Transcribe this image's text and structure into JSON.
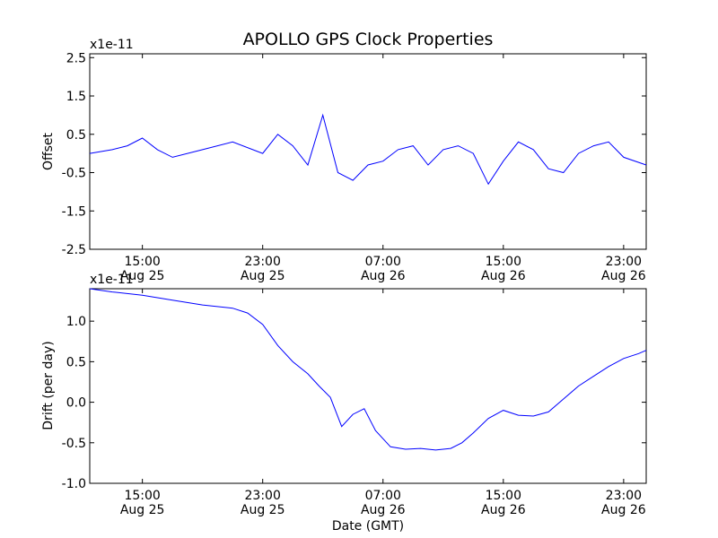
{
  "chart_data": [
    {
      "type": "line",
      "title": "APOLLO GPS Clock Properties",
      "ylabel": "Offset",
      "xlabel": "",
      "y_multiplier": "x1e-11",
      "ylim": [
        -2.5,
        2.6
      ],
      "yticks": [
        "2.5",
        "1.5",
        "0.5",
        "-0.5",
        "-1.5",
        "-2.5"
      ],
      "ytick_values": [
        2.5,
        1.5,
        0.5,
        -0.5,
        -1.5,
        -2.5
      ],
      "xlim": [
        "Aug 25 11:30",
        "Aug 27 00:30"
      ],
      "xticks": [
        {
          "time": "15:00",
          "date": "Aug 25"
        },
        {
          "time": "23:00",
          "date": "Aug 25"
        },
        {
          "time": "07:00",
          "date": "Aug 26"
        },
        {
          "time": "15:00",
          "date": "Aug 26"
        },
        {
          "time": "23:00",
          "date": "Aug 26"
        }
      ],
      "series_color": "#0000ff",
      "grid": false,
      "series": [
        {
          "x": [
            "Aug 25 11:30",
            "Aug 25 13:00",
            "Aug 25 14:00",
            "Aug 25 15:00",
            "Aug 25 16:00",
            "Aug 25 17:00",
            "Aug 25 19:00",
            "Aug 25 21:00",
            "Aug 25 23:00",
            "Aug 26 00:00",
            "Aug 26 01:00",
            "Aug 26 02:00",
            "Aug 26 03:00",
            "Aug 26 04:00",
            "Aug 26 05:00",
            "Aug 26 06:00",
            "Aug 26 07:00",
            "Aug 26 08:00",
            "Aug 26 09:00",
            "Aug 26 10:00",
            "Aug 26 11:00",
            "Aug 26 12:00",
            "Aug 26 13:00",
            "Aug 26 14:00",
            "Aug 26 15:00",
            "Aug 26 16:00",
            "Aug 26 17:00",
            "Aug 26 18:00",
            "Aug 26 19:00",
            "Aug 26 20:00",
            "Aug 26 21:00",
            "Aug 26 22:00",
            "Aug 26 23:00",
            "Aug 27 00:30"
          ],
          "values": [
            0.0,
            0.1,
            0.2,
            0.4,
            0.1,
            -0.1,
            0.1,
            0.3,
            0.0,
            0.5,
            0.2,
            -0.3,
            1.0,
            -0.5,
            -0.7,
            -0.3,
            -0.2,
            0.1,
            0.2,
            -0.3,
            0.1,
            0.2,
            0.0,
            -0.8,
            -0.2,
            0.3,
            0.1,
            -0.4,
            -0.5,
            0.0,
            0.2,
            0.3,
            -0.1,
            -0.3
          ]
        }
      ]
    },
    {
      "type": "line",
      "title": "",
      "ylabel": "Drift (per day)",
      "xlabel": "Date (GMT)",
      "y_multiplier": "x1e-11",
      "ylim": [
        -1.0,
        1.4
      ],
      "yticks": [
        "1.0",
        "0.5",
        "0.0",
        "-0.5",
        "-1.0"
      ],
      "ytick_values": [
        1.0,
        0.5,
        0.0,
        -0.5,
        -1.0
      ],
      "xlim": [
        "Aug 25 11:30",
        "Aug 27 00:30"
      ],
      "xticks": [
        {
          "time": "15:00",
          "date": "Aug 25"
        },
        {
          "time": "23:00",
          "date": "Aug 25"
        },
        {
          "time": "07:00",
          "date": "Aug 26"
        },
        {
          "time": "15:00",
          "date": "Aug 26"
        },
        {
          "time": "23:00",
          "date": "Aug 26"
        }
      ],
      "series_color": "#0000ff",
      "grid": false,
      "series": [
        {
          "x": [
            "Aug 25 11:30",
            "Aug 25 13:00",
            "Aug 25 15:00",
            "Aug 25 17:00",
            "Aug 25 19:00",
            "Aug 25 21:00",
            "Aug 25 22:00",
            "Aug 25 23:00",
            "Aug 26 00:00",
            "Aug 26 01:00",
            "Aug 26 02:00",
            "Aug 26 02:45",
            "Aug 26 03:30",
            "Aug 26 04:15",
            "Aug 26 05:00",
            "Aug 26 05:45",
            "Aug 26 06:30",
            "Aug 26 07:30",
            "Aug 26 08:30",
            "Aug 26 09:30",
            "Aug 26 10:30",
            "Aug 26 11:30",
            "Aug 26 12:15",
            "Aug 26 13:00",
            "Aug 26 14:00",
            "Aug 26 15:00",
            "Aug 26 16:00",
            "Aug 26 17:00",
            "Aug 26 18:00",
            "Aug 26 19:00",
            "Aug 26 20:00",
            "Aug 26 21:00",
            "Aug 26 22:00",
            "Aug 26 23:00",
            "Aug 27 00:00",
            "Aug 27 00:30"
          ],
          "values": [
            1.4,
            1.36,
            1.32,
            1.26,
            1.2,
            1.16,
            1.1,
            0.96,
            0.7,
            0.5,
            0.35,
            0.2,
            0.06,
            -0.3,
            -0.15,
            -0.08,
            -0.35,
            -0.55,
            -0.58,
            -0.57,
            -0.59,
            -0.57,
            -0.5,
            -0.38,
            -0.2,
            -0.1,
            -0.16,
            -0.17,
            -0.12,
            0.04,
            0.2,
            0.32,
            0.44,
            0.54,
            0.6,
            0.64
          ]
        }
      ]
    }
  ]
}
